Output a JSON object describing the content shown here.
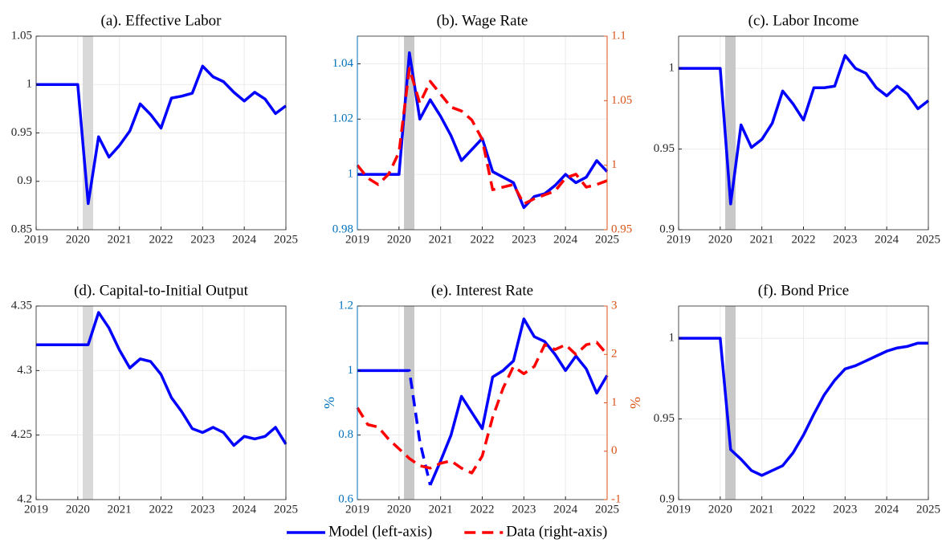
{
  "chart_data": [
    {
      "type": "line",
      "title": "(a). Effective Labor",
      "x": [
        2019,
        2019.25,
        2019.5,
        2019.75,
        2020,
        2020.25,
        2020.5,
        2020.75,
        2021,
        2021.25,
        2021.5,
        2021.75,
        2022,
        2022.25,
        2022.5,
        2022.75,
        2023,
        2023.25,
        2023.5,
        2023.75,
        2024,
        2024.25,
        2024.5,
        2024.75,
        2025
      ],
      "xlim": [
        2019,
        2025
      ],
      "xticks": [
        2019,
        2020,
        2021,
        2022,
        2023,
        2024,
        2025
      ],
      "ylim": [
        0.85,
        1.05
      ],
      "yticks": [
        0.85,
        0.9,
        0.95,
        1,
        1.05
      ],
      "grid": true,
      "shade": [
        2020.12,
        2020.37
      ],
      "shade_color": "#d9d9d9",
      "series": [
        {
          "color": "#0000ff",
          "values": [
            1,
            1,
            1,
            1,
            1,
            0.877,
            0.946,
            0.925,
            0.937,
            0.952,
            0.98,
            0.969,
            0.955,
            0.986,
            0.988,
            0.991,
            1.019,
            1.008,
            1.003,
            0.992,
            0.983,
            0.992,
            0.985,
            0.97,
            0.978
          ]
        }
      ]
    },
    {
      "type": "line",
      "title": "(b). Wage Rate",
      "x": [
        2019,
        2019.25,
        2019.5,
        2019.75,
        2020,
        2020.25,
        2020.5,
        2020.75,
        2021,
        2021.25,
        2021.5,
        2021.75,
        2022,
        2022.25,
        2022.5,
        2022.75,
        2023,
        2023.25,
        2023.5,
        2023.75,
        2024,
        2024.25,
        2024.5,
        2024.75,
        2025
      ],
      "xlim": [
        2019,
        2025
      ],
      "xticks": [
        2019,
        2020,
        2021,
        2022,
        2023,
        2024,
        2025
      ],
      "ylim": [
        0.98,
        1.05
      ],
      "yticks": [
        0.98,
        1,
        1.02,
        1.04
      ],
      "y2lim": [
        0.95,
        1.1
      ],
      "y2ticks": [
        0.95,
        1,
        1.05,
        1.1
      ],
      "yaxis_color": "#0072bd",
      "y2axis_color": "#d95319",
      "grid": true,
      "shade": [
        2020.12,
        2020.37
      ],
      "shade_color": "#c8c8c8",
      "legend": "bottom",
      "series": [
        {
          "name": "Model (left-axis)",
          "color": "#0000ff",
          "values": [
            1,
            1,
            1,
            1,
            1,
            1.044,
            1.02,
            1.027,
            1.021,
            1.014,
            1.005,
            1.009,
            1.013,
            1.001,
            0.999,
            0.997,
            0.988,
            0.992,
            0.993,
            0.996,
            1,
            0.997,
            0.999,
            1.005,
            1.001
          ]
        },
        {
          "name": "Data (right-axis)",
          "color": "#ff0000",
          "dash": true,
          "axis": "y2",
          "values": [
            1,
            0.99,
            0.985,
            0.993,
            1.01,
            1.075,
            1.048,
            1.065,
            1.055,
            1.045,
            1.042,
            1.035,
            1.02,
            0.981,
            0.983,
            0.985,
            0.97,
            0.974,
            0.977,
            0.98,
            0.99,
            0.993,
            0.983,
            0.985,
            0.988
          ]
        }
      ]
    },
    {
      "type": "line",
      "title": "(c). Labor Income",
      "x": [
        2019,
        2019.25,
        2019.5,
        2019.75,
        2020,
        2020.25,
        2020.5,
        2020.75,
        2021,
        2021.25,
        2021.5,
        2021.75,
        2022,
        2022.25,
        2022.5,
        2022.75,
        2023,
        2023.25,
        2023.5,
        2023.75,
        2024,
        2024.25,
        2024.5,
        2024.75,
        2025
      ],
      "xlim": [
        2019,
        2025
      ],
      "xticks": [
        2019,
        2020,
        2021,
        2022,
        2023,
        2024,
        2025
      ],
      "ylim": [
        0.9,
        1.02
      ],
      "yticks": [
        0.9,
        0.95,
        1
      ],
      "grid": true,
      "shade": [
        2020.12,
        2020.37
      ],
      "shade_color": "#c8c8c8",
      "series": [
        {
          "color": "#0000ff",
          "values": [
            1,
            1,
            1,
            1,
            1,
            0.916,
            0.965,
            0.951,
            0.956,
            0.966,
            0.986,
            0.978,
            0.968,
            0.988,
            0.988,
            0.989,
            1.008,
            1,
            0.997,
            0.988,
            0.983,
            0.989,
            0.984,
            0.975,
            0.98
          ]
        }
      ]
    },
    {
      "type": "line",
      "title": "(d). Capital-to-Initial Output",
      "x": [
        2019,
        2019.25,
        2019.5,
        2019.75,
        2020,
        2020.25,
        2020.5,
        2020.75,
        2021,
        2021.25,
        2021.5,
        2021.75,
        2022,
        2022.25,
        2022.5,
        2022.75,
        2023,
        2023.25,
        2023.5,
        2023.75,
        2024,
        2024.25,
        2024.5,
        2024.75,
        2025
      ],
      "xlim": [
        2019,
        2025
      ],
      "xticks": [
        2019,
        2020,
        2021,
        2022,
        2023,
        2024,
        2025
      ],
      "ylim": [
        4.2,
        4.35
      ],
      "yticks": [
        4.2,
        4.25,
        4.3,
        4.35
      ],
      "grid": true,
      "shade": [
        2020.12,
        2020.37
      ],
      "shade_color": "#d9d9d9",
      "series": [
        {
          "color": "#0000ff",
          "values": [
            4.32,
            4.32,
            4.32,
            4.32,
            4.32,
            4.32,
            4.345,
            4.333,
            4.316,
            4.302,
            4.309,
            4.307,
            4.297,
            4.279,
            4.268,
            4.255,
            4.252,
            4.256,
            4.252,
            4.242,
            4.249,
            4.247,
            4.249,
            4.256,
            4.243
          ]
        }
      ]
    },
    {
      "type": "line",
      "title": "(e). Interest Rate",
      "ylabel": "%",
      "y2label": "%",
      "x": [
        2019,
        2019.25,
        2019.5,
        2019.75,
        2020,
        2020.25,
        2020.5,
        2020.75,
        2021,
        2021.25,
        2021.5,
        2021.75,
        2022,
        2022.25,
        2022.5,
        2022.75,
        2023,
        2023.25,
        2023.5,
        2023.75,
        2024,
        2024.25,
        2024.5,
        2024.75,
        2025
      ],
      "xlim": [
        2019,
        2025
      ],
      "xticks": [
        2019,
        2020,
        2021,
        2022,
        2023,
        2024,
        2025
      ],
      "ylim": [
        0.6,
        1.2
      ],
      "yticks": [
        0.6,
        0.8,
        1,
        1.2
      ],
      "y2lim": [
        -1,
        3
      ],
      "y2ticks": [
        -1,
        0,
        1,
        2,
        3
      ],
      "yaxis_color": "#0072bd",
      "y2axis_color": "#d95319",
      "grid": true,
      "shade": [
        2020.12,
        2020.37
      ],
      "shade_color": "#c8c8c8",
      "series": [
        {
          "color": "#0000ff",
          "values": [
            1,
            1,
            1,
            1,
            1,
            null,
            null,
            0.645,
            0.72,
            0.8,
            0.92,
            0.87,
            0.82,
            0.98,
            1,
            1.03,
            1.16,
            1.105,
            1.09,
            1.05,
            1,
            1.045,
            1.005,
            0.93,
            0.985
          ]
        },
        {
          "color": "#0000ff",
          "dash": true,
          "values": [
            null,
            null,
            null,
            null,
            1,
            1,
            0.78,
            0.645,
            null,
            null,
            null,
            null,
            null,
            null,
            null,
            null,
            null,
            null,
            null,
            null,
            null,
            null,
            null,
            null,
            null
          ]
        },
        {
          "color": "#ff0000",
          "dash": true,
          "axis": "y2",
          "values": [
            0.9,
            0.55,
            0.5,
            0.25,
            0.05,
            -0.15,
            -0.3,
            -0.35,
            -0.25,
            -0.2,
            -0.35,
            -0.45,
            -0.1,
            0.7,
            1.3,
            1.75,
            1.6,
            1.75,
            2.2,
            2.1,
            2.2,
            2,
            2.2,
            2.25,
            2
          ]
        }
      ]
    },
    {
      "type": "line",
      "title": "(f). Bond Price",
      "x": [
        2019,
        2019.25,
        2019.5,
        2019.75,
        2020,
        2020.25,
        2020.5,
        2020.75,
        2021,
        2021.25,
        2021.5,
        2021.75,
        2022,
        2022.25,
        2022.5,
        2022.75,
        2023,
        2023.25,
        2023.5,
        2023.75,
        2024,
        2024.25,
        2024.5,
        2024.75,
        2025
      ],
      "xlim": [
        2019,
        2025
      ],
      "xticks": [
        2019,
        2020,
        2021,
        2022,
        2023,
        2024,
        2025
      ],
      "ylim": [
        0.9,
        1.02
      ],
      "yticks": [
        0.9,
        0.95,
        1
      ],
      "grid": true,
      "shade": [
        2020.12,
        2020.37
      ],
      "shade_color": "#c8c8c8",
      "series": [
        {
          "color": "#0000ff",
          "values": [
            1,
            1,
            1,
            1,
            1,
            0.931,
            0.925,
            0.918,
            0.915,
            0.918,
            0.921,
            0.929,
            0.94,
            0.953,
            0.965,
            0.974,
            0.981,
            0.983,
            0.986,
            0.989,
            0.992,
            0.994,
            0.995,
            0.997,
            0.997
          ]
        }
      ]
    }
  ]
}
